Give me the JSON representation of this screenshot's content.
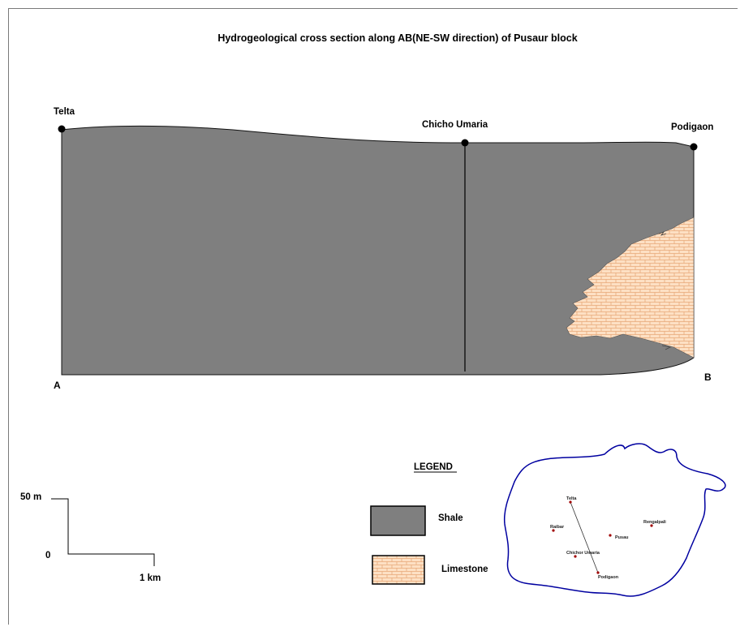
{
  "title": "Hydrogeological cross section along AB(NE-SW direction) of Pusaur block",
  "section": {
    "wells": [
      {
        "name": "Telta"
      },
      {
        "name": "Chicho Umaria"
      },
      {
        "name": "Podigaon"
      }
    ],
    "end_a": "A",
    "end_b": "B"
  },
  "legend": {
    "heading": "LEGEND",
    "items": [
      {
        "label": "Shale",
        "color": "#7f7f7f"
      },
      {
        "label": "Limestone",
        "color": "#fde0c4"
      }
    ]
  },
  "scale": {
    "vertical_top": "50 m",
    "vertical_bottom": "0",
    "horizontal": "1 km"
  },
  "map": {
    "locations": [
      "Telta",
      "Raibar",
      "Rengalpali",
      "Pusau",
      "Chichor Umaria",
      "Podigaon"
    ]
  },
  "colors": {
    "shale": "#7f7f7f",
    "limestone": "#fde0c4",
    "limestone_lines": "#e8a878",
    "boundary": "#0000a0",
    "point": "#a00000"
  }
}
